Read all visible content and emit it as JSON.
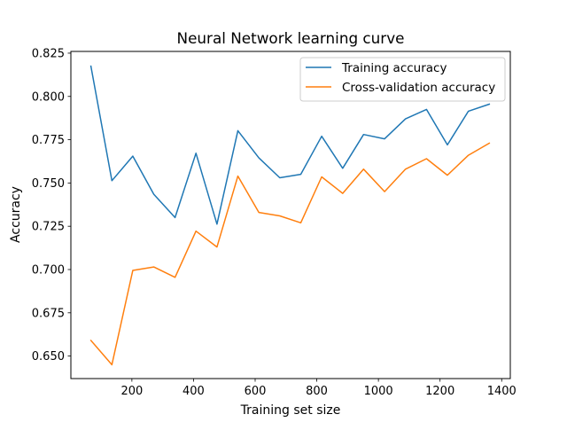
{
  "chart_data": {
    "type": "line",
    "title": "Neural Network learning curve",
    "xlabel": "Training set size",
    "ylabel": "Accuracy",
    "xlim": [
      2,
      1428
    ],
    "ylim": [
      0.637,
      0.826
    ],
    "xticks": [
      200,
      400,
      600,
      800,
      1000,
      1200,
      1400
    ],
    "xtick_labels": [
      "200",
      "400",
      "600",
      "800",
      "1000",
      "1200",
      "1400"
    ],
    "yticks": [
      0.65,
      0.675,
      0.7,
      0.725,
      0.75,
      0.775,
      0.8,
      0.825
    ],
    "ytick_labels": [
      "0.650",
      "0.675",
      "0.700",
      "0.725",
      "0.750",
      "0.775",
      "0.800",
      "0.825"
    ],
    "grid": false,
    "legend_position": "upper-right",
    "x": [
      67,
      135,
      203,
      271,
      340,
      408,
      476,
      544,
      612,
      680,
      748,
      816,
      884,
      952,
      1020,
      1088,
      1156,
      1224,
      1292,
      1360
    ],
    "series": [
      {
        "name": "Training accuracy",
        "color": "#1f77b4",
        "values": [
          0.8175,
          0.7513,
          0.7655,
          0.7435,
          0.73,
          0.7672,
          0.7262,
          0.7802,
          0.7645,
          0.753,
          0.755,
          0.777,
          0.7585,
          0.778,
          0.7755,
          0.787,
          0.7925,
          0.772,
          0.7915,
          0.7955
        ]
      },
      {
        "name": "Cross-validation accuracy",
        "color": "#ff7f0e",
        "values": [
          0.659,
          0.645,
          0.6995,
          0.7015,
          0.6955,
          0.7222,
          0.713,
          0.754,
          0.733,
          0.731,
          0.727,
          0.7535,
          0.744,
          0.758,
          0.745,
          0.758,
          0.764,
          0.7545,
          0.766,
          0.773
        ]
      }
    ]
  }
}
